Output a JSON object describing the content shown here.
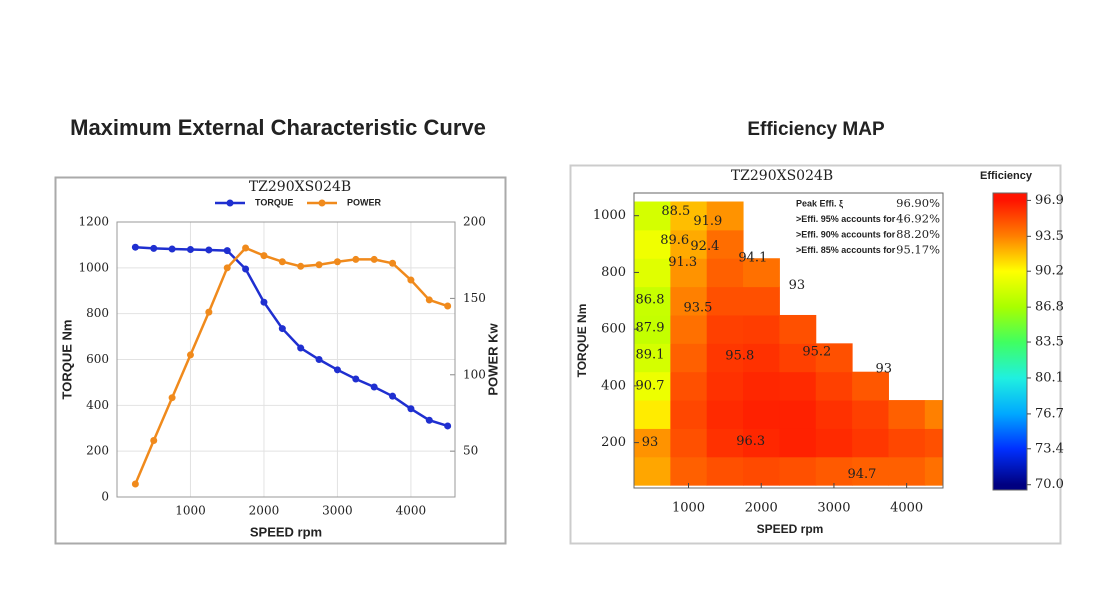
{
  "chart_data": [
    {
      "type": "line",
      "heading": "Maximum External Characteristic Curve",
      "title": "TZ290XS024B",
      "x_label": "SPEED rpm",
      "y_label": "TORQUE Nm",
      "y2_label": "POWER Kw",
      "x": [
        250,
        500,
        750,
        1000,
        1250,
        1500,
        1750,
        2000,
        2250,
        2500,
        2750,
        3000,
        3250,
        3500,
        3750,
        4000,
        4250,
        4500
      ],
      "series": [
        {
          "name": "TORQUE",
          "color": "#1f2fd0",
          "values": [
            1090,
            1085,
            1082,
            1080,
            1078,
            1075,
            995,
            850,
            735,
            650,
            600,
            555,
            515,
            480,
            440,
            385,
            335,
            310
          ]
        },
        {
          "name": "POWER",
          "color": "#f08a1c",
          "axis": "y2",
          "values": [
            28.5,
            57,
            85,
            113,
            141,
            170,
            183,
            178,
            174,
            171,
            172,
            174,
            175.5,
            175.5,
            173,
            162,
            149,
            145
          ]
        }
      ],
      "xlim": [
        0,
        4600
      ],
      "xticks": [
        1000,
        2000,
        3000,
        4000
      ],
      "ylim": [
        0,
        1200
      ],
      "yticks": [
        0,
        200,
        400,
        600,
        800,
        1000,
        1200
      ],
      "y2lim": [
        20,
        200
      ],
      "y2ticks": [
        50,
        100,
        150,
        200
      ],
      "grid": true,
      "legend": "top"
    },
    {
      "type": "contour",
      "heading": "Efficiency MAP",
      "title": "TZ290XS024B",
      "x_label": "SPEED rpm",
      "y_label": "TORQUE Nm",
      "colorbar_title": "Efficiency",
      "x": [
        500,
        1000,
        1500,
        2000,
        2500,
        3000,
        3500,
        4000,
        4500
      ],
      "y": [
        100,
        200,
        300,
        400,
        500,
        600,
        700,
        800,
        900,
        1000
      ],
      "z": [
        [
          92.5,
          94.5,
          95.0,
          95.2,
          95.0,
          94.7,
          94.5,
          94.5,
          94.0
        ],
        [
          93.0,
          95.0,
          96.0,
          96.3,
          96.5,
          96.2,
          95.8,
          95.3,
          95.0
        ],
        [
          90.7,
          95.3,
          96.2,
          96.5,
          96.5,
          96.0,
          95.5,
          94.5,
          93.5
        ],
        [
          89.5,
          95.0,
          96.0,
          96.3,
          96.2,
          95.5,
          94.8,
          null,
          null
        ],
        [
          88.5,
          94.5,
          95.8,
          96.0,
          95.5,
          95.0,
          null,
          null,
          null
        ],
        [
          87.9,
          94.0,
          95.5,
          95.6,
          95.0,
          null,
          null,
          null,
          null
        ],
        [
          88.0,
          93.5,
          95.0,
          95.0,
          null,
          null,
          null,
          null,
          null
        ],
        [
          89.0,
          93.0,
          94.5,
          94.0,
          null,
          null,
          null,
          null,
          null
        ],
        [
          89.6,
          92.4,
          94.1,
          null,
          null,
          null,
          null,
          null,
          null
        ],
        [
          88.5,
          91.9,
          93.0,
          null,
          null,
          null,
          null,
          null,
          null
        ]
      ],
      "contour_labels": [
        {
          "value": 88.5,
          "x": 825,
          "y": 1014
        },
        {
          "value": 91.9,
          "x": 1265,
          "y": 980
        },
        {
          "value": 89.6,
          "x": 810,
          "y": 912
        },
        {
          "value": 92.4,
          "x": 1225,
          "y": 891
        },
        {
          "value": 91.3,
          "x": 920,
          "y": 835
        },
        {
          "value": 94.1,
          "x": 1885,
          "y": 850
        },
        {
          "value": 93.0,
          "x": 2490,
          "y": 754
        },
        {
          "value": 86.8,
          "x": 470,
          "y": 702
        },
        {
          "value": 93.5,
          "x": 1130,
          "y": 674
        },
        {
          "value": 87.9,
          "x": 470,
          "y": 604
        },
        {
          "value": 95.8,
          "x": 1705,
          "y": 505
        },
        {
          "value": 95.2,
          "x": 2765,
          "y": 519
        },
        {
          "value": 89.1,
          "x": 470,
          "y": 509
        },
        {
          "value": 93.0,
          "x": 3685,
          "y": 460
        },
        {
          "value": 90.7,
          "x": 470,
          "y": 400
        },
        {
          "value": 93.0,
          "x": 470,
          "y": 200
        },
        {
          "value": 96.3,
          "x": 1855,
          "y": 204
        },
        {
          "value": 94.7,
          "x": 3385,
          "y": 88
        }
      ],
      "info": [
        {
          "label": "Peak Effi. ξ",
          "value": "96.90%"
        },
        {
          "label": ">Effi. 95% accounts for",
          "value": "46.92%"
        },
        {
          "label": ">Effi. 90% accounts for",
          "value": "88.20%"
        },
        {
          "label": ">Effi. 85% accounts for",
          "value": "95.17%"
        }
      ],
      "xlim": [
        250,
        4500
      ],
      "xticks": [
        1000,
        2000,
        3000,
        4000
      ],
      "ylim": [
        40,
        1080
      ],
      "yticks": [
        200,
        400,
        600,
        800,
        1000
      ],
      "zlim": [
        69.5,
        97.6
      ],
      "zticks": [
        {
          "value": 70,
          "label": "70.0"
        },
        73.4,
        76.7,
        80.1,
        83.5,
        86.8,
        90.2,
        93.5,
        96.9
      ],
      "colorbar_colors": [
        "#000080",
        "#0030ff",
        "#00a8ff",
        "#20f0e0",
        "#40ff60",
        "#a8ff00",
        "#ffff00",
        "#ff8000",
        "#ff1400"
      ]
    }
  ]
}
